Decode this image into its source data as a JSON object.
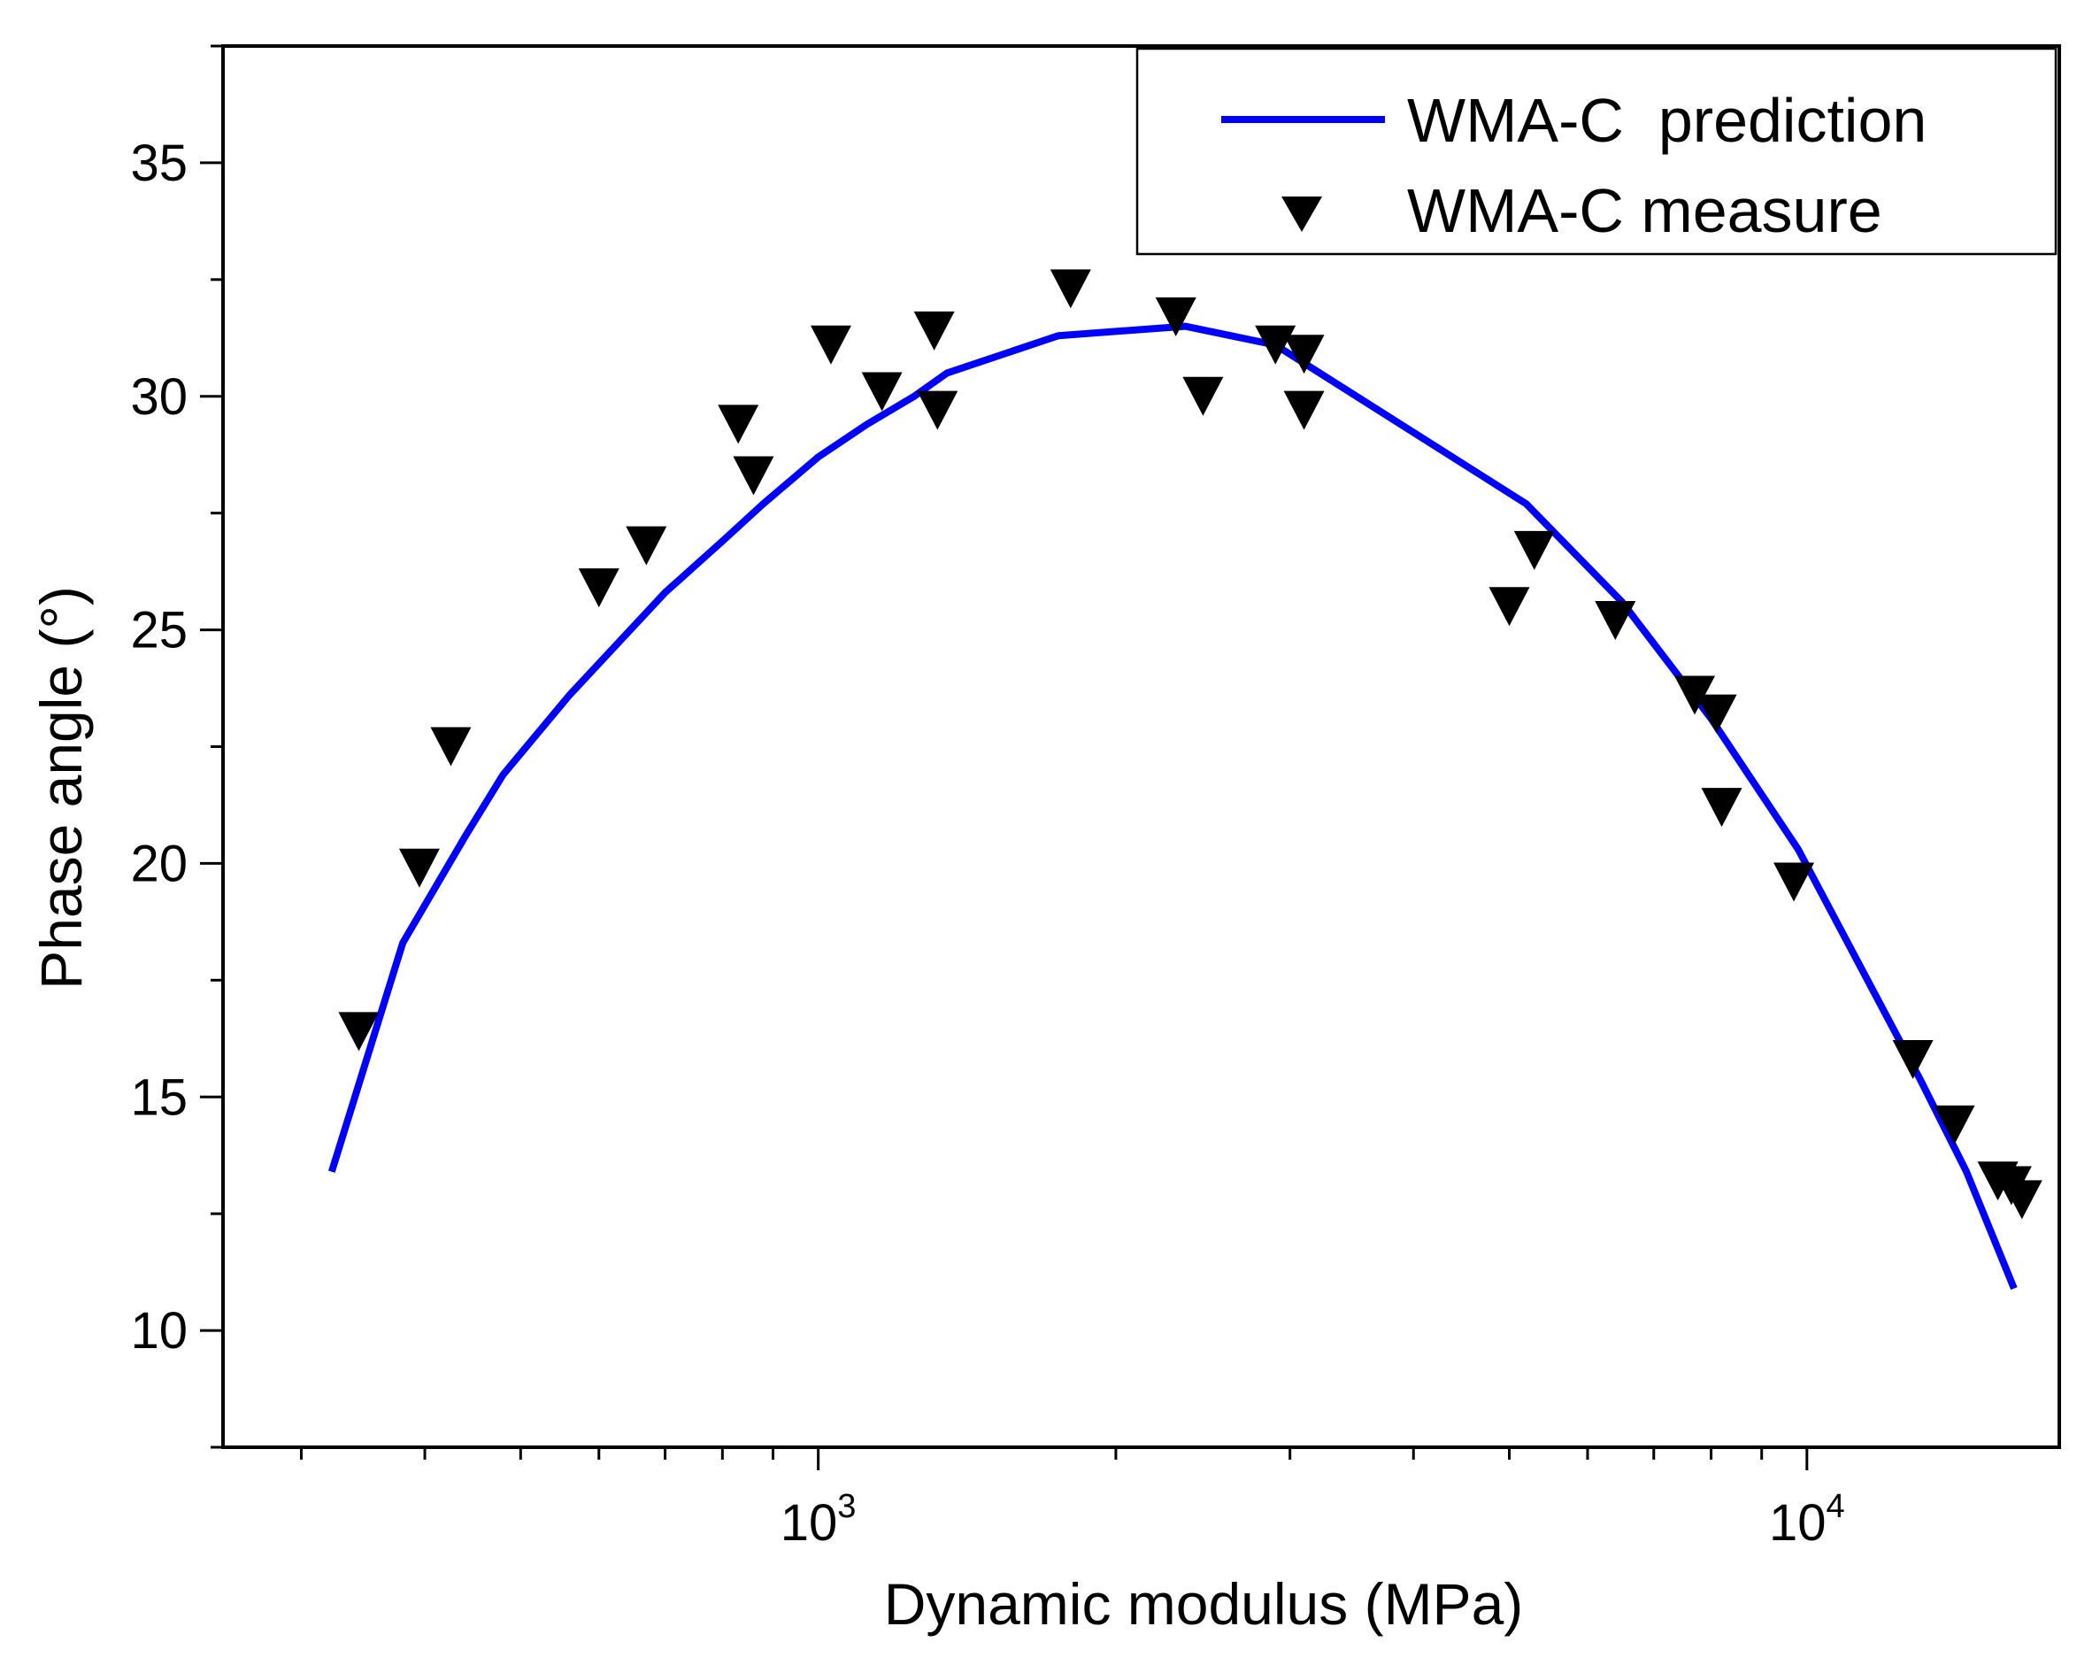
{
  "chart_data": {
    "type": "line",
    "title": "",
    "xlabel": "Dynamic modulus (MPa)",
    "ylabel": "Phase angle (°)",
    "xscale": "log",
    "xlim": [
      250,
      18000
    ],
    "ylim": [
      7.5,
      37.5
    ],
    "xticks": [
      {
        "value": 1000,
        "base": "10",
        "exp": "3"
      },
      {
        "value": 10000,
        "base": "10",
        "exp": "4"
      }
    ],
    "yticks": [
      10,
      15,
      20,
      25,
      30,
      35
    ],
    "legend_position": "top-right",
    "series": [
      {
        "name": "WMA-C  prediction",
        "kind": "line",
        "color": "#0000ff",
        "points": [
          [
            322,
            13.4
          ],
          [
            380,
            18.3
          ],
          [
            440,
            20.6
          ],
          [
            480,
            21.9
          ],
          [
            560,
            23.6
          ],
          [
            700,
            25.8
          ],
          [
            800,
            26.9
          ],
          [
            880,
            27.7
          ],
          [
            1000,
            28.7
          ],
          [
            1120,
            29.4
          ],
          [
            1250,
            30.0
          ],
          [
            1350,
            30.5
          ],
          [
            1750,
            31.3
          ],
          [
            2350,
            31.5
          ],
          [
            2900,
            31.1
          ],
          [
            5200,
            27.7
          ],
          [
            6500,
            25.6
          ],
          [
            8000,
            23.1
          ],
          [
            9800,
            20.3
          ],
          [
            13000,
            15.4
          ],
          [
            14500,
            13.4
          ],
          [
            16200,
            10.9
          ]
        ]
      },
      {
        "name": "WMA-C measure",
        "kind": "scatter",
        "marker": "triangle-down",
        "color": "#000000",
        "points": [
          [
            343,
            16.4
          ],
          [
            395,
            19.9
          ],
          [
            425,
            22.5
          ],
          [
            600,
            25.9
          ],
          [
            670,
            26.8
          ],
          [
            830,
            29.4
          ],
          [
            860,
            28.3
          ],
          [
            1030,
            31.1
          ],
          [
            1160,
            30.1
          ],
          [
            1310,
            31.4
          ],
          [
            1320,
            29.7
          ],
          [
            1800,
            32.3
          ],
          [
            2300,
            31.7
          ],
          [
            2450,
            30.0
          ],
          [
            2900,
            31.1
          ],
          [
            3100,
            30.9
          ],
          [
            3100,
            29.7
          ],
          [
            5000,
            25.5
          ],
          [
            5300,
            26.7
          ],
          [
            6400,
            25.2
          ],
          [
            7700,
            23.6
          ],
          [
            8100,
            23.2
          ],
          [
            8200,
            21.2
          ],
          [
            9700,
            19.6
          ],
          [
            12800,
            15.8
          ],
          [
            14100,
            14.4
          ],
          [
            15600,
            13.2
          ],
          [
            16100,
            13.1
          ],
          [
            16500,
            12.8
          ]
        ]
      }
    ]
  }
}
